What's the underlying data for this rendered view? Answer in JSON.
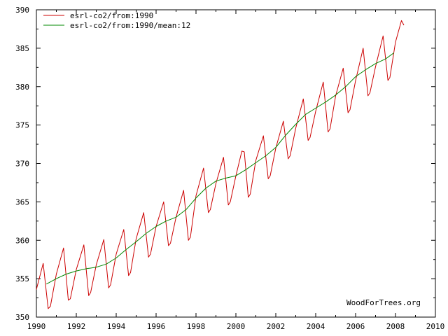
{
  "chart_data": {
    "type": "line",
    "title": "",
    "xlabel": "",
    "ylabel": "",
    "xlim": [
      1990,
      2010
    ],
    "ylim": [
      350,
      390
    ],
    "grid": false,
    "legend_position": "top-left",
    "x_ticks": [
      "1990",
      "1992",
      "1994",
      "1996",
      "1998",
      "2000",
      "2002",
      "2004",
      "2006",
      "2008",
      "2010"
    ],
    "y_ticks": [
      "350",
      "355",
      "360",
      "365",
      "370",
      "375",
      "380",
      "385",
      "390"
    ],
    "watermark": "WoodForTrees.org",
    "series": [
      {
        "name": "esrl-co2/from:1990",
        "color": "#cc0000",
        "x": [
          1990.0,
          1990.34,
          1990.59,
          1990.7,
          1991.0,
          1991.36,
          1991.6,
          1991.7,
          1992.0,
          1992.38,
          1992.62,
          1992.72,
          1993.0,
          1993.38,
          1993.62,
          1993.72,
          1994.0,
          1994.38,
          1994.62,
          1994.72,
          1995.0,
          1995.38,
          1995.62,
          1995.72,
          1996.0,
          1996.38,
          1996.62,
          1996.72,
          1997.0,
          1997.38,
          1997.62,
          1997.72,
          1998.0,
          1998.38,
          1998.62,
          1998.72,
          1999.0,
          1999.38,
          1999.62,
          1999.72,
          2000.0,
          2000.3,
          2000.42,
          2000.62,
          2000.72,
          2001.0,
          2001.38,
          2001.62,
          2001.72,
          2002.0,
          2002.38,
          2002.62,
          2002.72,
          2003.0,
          2003.38,
          2003.62,
          2003.72,
          2004.0,
          2004.38,
          2004.62,
          2004.72,
          2005.0,
          2005.38,
          2005.62,
          2005.72,
          2006.0,
          2006.38,
          2006.62,
          2006.72,
          2007.0,
          2007.38,
          2007.62,
          2007.72,
          2008.0,
          2008.3,
          2008.42
        ],
        "values": [
          353.6,
          357.0,
          351.1,
          351.4,
          355.6,
          359.0,
          352.2,
          352.4,
          356.2,
          359.4,
          352.8,
          353.2,
          356.8,
          360.1,
          353.8,
          354.2,
          358.2,
          361.4,
          355.4,
          355.8,
          360.2,
          363.6,
          357.8,
          358.2,
          361.8,
          365.0,
          359.3,
          359.6,
          363.0,
          366.5,
          360.0,
          360.4,
          365.8,
          369.4,
          363.6,
          364.0,
          367.4,
          370.8,
          364.6,
          365.0,
          368.4,
          371.6,
          371.5,
          365.6,
          366.0,
          370.4,
          373.6,
          368.0,
          368.4,
          372.0,
          375.5,
          370.6,
          371.0,
          374.6,
          378.4,
          373.0,
          373.4,
          376.8,
          380.6,
          374.1,
          374.5,
          378.8,
          382.4,
          376.6,
          377.0,
          380.8,
          385.0,
          378.8,
          379.2,
          382.6,
          386.6,
          380.8,
          381.2,
          385.8,
          388.6,
          388.0
        ]
      },
      {
        "name": "esrl-co2/from:1990/mean:12",
        "color": "#008800",
        "x": [
          1990.5,
          1991.0,
          1991.5,
          1992.0,
          1992.5,
          1993.0,
          1993.5,
          1994.0,
          1994.5,
          1995.0,
          1995.5,
          1996.0,
          1996.5,
          1997.0,
          1997.5,
          1998.0,
          1998.5,
          1999.0,
          1999.5,
          2000.0,
          2000.5,
          2001.0,
          2001.5,
          2002.0,
          2002.5,
          2003.0,
          2003.5,
          2004.0,
          2004.5,
          2005.0,
          2005.5,
          2006.0,
          2006.5,
          2007.0,
          2007.5,
          2007.92
        ],
        "values": [
          354.3,
          355.0,
          355.6,
          356.0,
          356.3,
          356.5,
          356.9,
          357.7,
          358.8,
          359.8,
          360.9,
          361.8,
          362.5,
          363.0,
          364.0,
          365.5,
          366.8,
          367.7,
          368.1,
          368.4,
          369.2,
          370.1,
          371.0,
          372.1,
          373.7,
          375.1,
          376.4,
          377.2,
          378.0,
          378.9,
          380.0,
          381.3,
          382.2,
          383.0,
          383.6,
          384.4
        ]
      }
    ]
  }
}
